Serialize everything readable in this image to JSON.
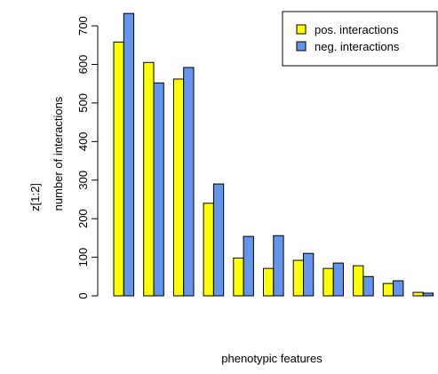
{
  "chart_data": {
    "type": "bar",
    "xlabel": "phenotypic features",
    "ylabel": "number of interactions",
    "ylabel_outer": "z[1:2]",
    "categories": [
      null,
      null,
      null,
      null,
      null,
      null,
      null,
      null,
      null,
      null,
      null
    ],
    "series": [
      {
        "name": "pos. interactions",
        "color": "#ffff00",
        "values": [
          658,
          605,
          562,
          240,
          98,
          71,
          92,
          71,
          78,
          32,
          9
        ]
      },
      {
        "name": "neg. interactions",
        "color": "#6495ed",
        "values": [
          732,
          552,
          592,
          290,
          154,
          156,
          110,
          85,
          50,
          39,
          7
        ]
      }
    ],
    "ylim": [
      0,
      737
    ],
    "yticks": [
      0,
      100,
      200,
      300,
      400,
      500,
      600,
      700
    ],
    "legend": "top-right"
  }
}
